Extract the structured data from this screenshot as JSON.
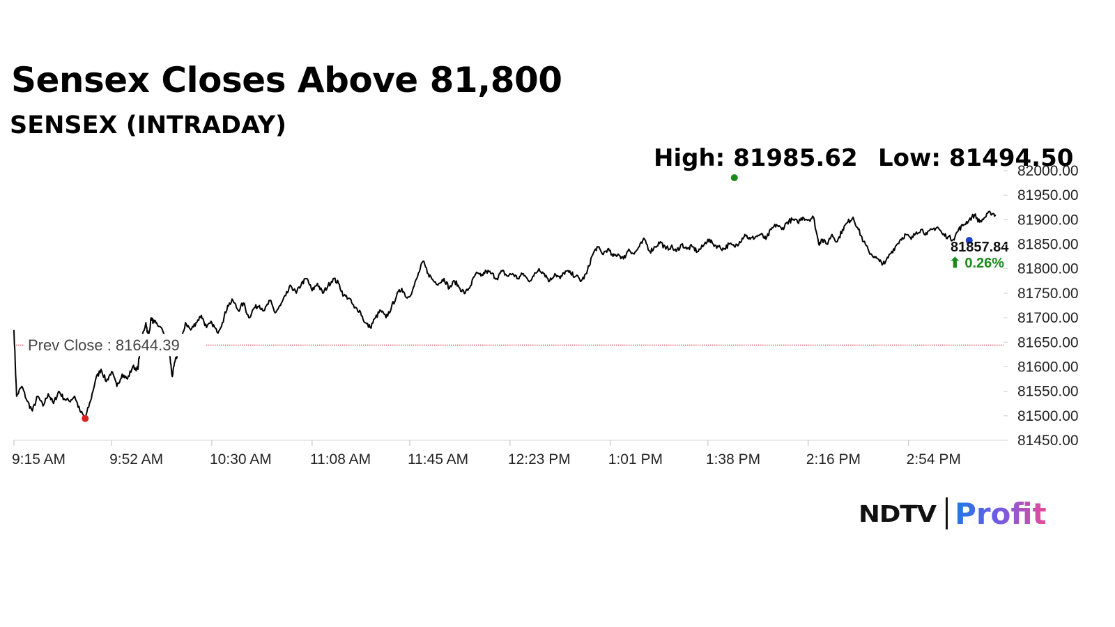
{
  "header": {
    "title": "Sensex Closes Above 81,800",
    "subtitle": "SENSEX (INTRADAY)"
  },
  "logo": {
    "brand": "NDTV",
    "product": "Profit"
  },
  "chart_data": {
    "type": "line",
    "series_color": "#000000",
    "high_label": "High: 81985.62",
    "low_label": "Low: 81494.50",
    "high": {
      "time_min": 273,
      "value": 81985.62,
      "color": "#1a8a1a"
    },
    "low": {
      "time_min": 27,
      "value": 81494.5,
      "color": "#e0201e"
    },
    "last": {
      "time_min": 362,
      "value": 81857.84,
      "label": "81857.84",
      "change": "0.26%",
      "change_color": "#1a8a1a",
      "marker_color": "#1e3ec8"
    },
    "prev_close": {
      "label": "Prev Close : 81644.39",
      "value": 81644.39,
      "color": "#d12020"
    },
    "x_time_labels": [
      {
        "min": 0,
        "label": "9:15 AM"
      },
      {
        "min": 37,
        "label": "9:52 AM"
      },
      {
        "min": 75,
        "label": "10:30 AM"
      },
      {
        "min": 113,
        "label": "11:08 AM"
      },
      {
        "min": 150,
        "label": "11:45 AM"
      },
      {
        "min": 188,
        "label": "12:23 PM"
      },
      {
        "min": 226,
        "label": "1:01 PM"
      },
      {
        "min": 263,
        "label": "1:38 PM"
      },
      {
        "min": 301,
        "label": "2:16 PM"
      },
      {
        "min": 339,
        "label": "2:54 PM"
      }
    ],
    "y_ticks": [
      {
        "value": 81450,
        "label": "81450.00"
      },
      {
        "value": 81500,
        "label": "81500.00"
      },
      {
        "value": 81550,
        "label": "81550.00"
      },
      {
        "value": 81600,
        "label": "81600.00"
      },
      {
        "value": 81650,
        "label": "81650.00"
      },
      {
        "value": 81700,
        "label": "81700.00"
      },
      {
        "value": 81750,
        "label": "81750.00"
      },
      {
        "value": 81800,
        "label": "81800.00"
      },
      {
        "value": 81850,
        "label": "81850.00"
      },
      {
        "value": 81900,
        "label": "81900.00"
      },
      {
        "value": 81950,
        "label": "81950.00"
      },
      {
        "value": 82000,
        "label": "82000.00"
      }
    ],
    "ylim": [
      81450,
      82000
    ],
    "xlim_min": [
      0,
      375
    ],
    "points": [
      [
        0,
        81675
      ],
      [
        1,
        81540
      ],
      [
        3,
        81560
      ],
      [
        5,
        81530
      ],
      [
        7,
        81510
      ],
      [
        9,
        81540
      ],
      [
        11,
        81520
      ],
      [
        13,
        81545
      ],
      [
        15,
        81525
      ],
      [
        17,
        81550
      ],
      [
        19,
        81535
      ],
      [
        21,
        81530
      ],
      [
        23,
        81540
      ],
      [
        25,
        81510
      ],
      [
        27,
        81495
      ],
      [
        29,
        81530
      ],
      [
        31,
        81575
      ],
      [
        33,
        81595
      ],
      [
        35,
        81570
      ],
      [
        37,
        81590
      ],
      [
        39,
        81560
      ],
      [
        41,
        81585
      ],
      [
        43,
        81575
      ],
      [
        45,
        81600
      ],
      [
        47,
        81595
      ],
      [
        48,
        81650
      ],
      [
        50,
        81690
      ],
      [
        51,
        81660
      ],
      [
        52,
        81700
      ],
      [
        53,
        81690
      ],
      [
        54,
        81690
      ],
      [
        58,
        81660
      ],
      [
        59,
        81625
      ],
      [
        60,
        81580
      ],
      [
        61,
        81610
      ],
      [
        63,
        81640
      ],
      [
        65,
        81690
      ],
      [
        67,
        81675
      ],
      [
        69,
        81690
      ],
      [
        71,
        81705
      ],
      [
        73,
        81680
      ],
      [
        75,
        81690
      ],
      [
        77,
        81670
      ],
      [
        79,
        81690
      ],
      [
        81,
        81725
      ],
      [
        83,
        81735
      ],
      [
        85,
        81715
      ],
      [
        87,
        81730
      ],
      [
        89,
        81700
      ],
      [
        91,
        81720
      ],
      [
        93,
        81725
      ],
      [
        95,
        81715
      ],
      [
        97,
        81735
      ],
      [
        99,
        81710
      ],
      [
        101,
        81725
      ],
      [
        103,
        81745
      ],
      [
        105,
        81765
      ],
      [
        107,
        81750
      ],
      [
        109,
        81770
      ],
      [
        111,
        81780
      ],
      [
        113,
        81755
      ],
      [
        115,
        81770
      ],
      [
        117,
        81750
      ],
      [
        119,
        81765
      ],
      [
        121,
        81780
      ],
      [
        123,
        81770
      ],
      [
        125,
        81745
      ],
      [
        127,
        81740
      ],
      [
        129,
        81720
      ],
      [
        131,
        81715
      ],
      [
        133,
        81690
      ],
      [
        135,
        81680
      ],
      [
        137,
        81700
      ],
      [
        139,
        81715
      ],
      [
        141,
        81700
      ],
      [
        143,
        81720
      ],
      [
        145,
        81745
      ],
      [
        147,
        81760
      ],
      [
        149,
        81740
      ],
      [
        151,
        81755
      ],
      [
        153,
        81785
      ],
      [
        155,
        81815
      ],
      [
        157,
        81790
      ],
      [
        159,
        81775
      ],
      [
        161,
        81770
      ],
      [
        163,
        81780
      ],
      [
        165,
        81760
      ],
      [
        167,
        81775
      ],
      [
        169,
        81760
      ],
      [
        171,
        81750
      ],
      [
        173,
        81765
      ],
      [
        175,
        81790
      ],
      [
        177,
        81785
      ],
      [
        179,
        81795
      ],
      [
        181,
        81790
      ],
      [
        183,
        81780
      ],
      [
        185,
        81795
      ],
      [
        187,
        81785
      ],
      [
        189,
        81790
      ],
      [
        191,
        81780
      ],
      [
        193,
        81790
      ],
      [
        195,
        81775
      ],
      [
        197,
        81785
      ],
      [
        199,
        81800
      ],
      [
        201,
        81790
      ],
      [
        203,
        81775
      ],
      [
        205,
        81790
      ],
      [
        207,
        81780
      ],
      [
        209,
        81795
      ],
      [
        211,
        81790
      ],
      [
        213,
        81785
      ],
      [
        215,
        81775
      ],
      [
        217,
        81790
      ],
      [
        219,
        81825
      ],
      [
        221,
        81845
      ],
      [
        223,
        81830
      ],
      [
        225,
        81840
      ],
      [
        227,
        81825
      ],
      [
        229,
        81830
      ],
      [
        231,
        81820
      ],
      [
        233,
        81840
      ],
      [
        235,
        81830
      ],
      [
        237,
        81845
      ],
      [
        239,
        81860
      ],
      [
        241,
        81835
      ],
      [
        243,
        81845
      ],
      [
        245,
        81855
      ],
      [
        247,
        81840
      ],
      [
        249,
        81845
      ],
      [
        251,
        81835
      ],
      [
        253,
        81850
      ],
      [
        255,
        81840
      ],
      [
        257,
        81845
      ],
      [
        259,
        81835
      ],
      [
        261,
        81845
      ],
      [
        263,
        81860
      ],
      [
        265,
        81850
      ],
      [
        267,
        81845
      ],
      [
        269,
        81840
      ],
      [
        271,
        81850
      ],
      [
        273,
        81845
      ],
      [
        275,
        81855
      ],
      [
        277,
        81870
      ],
      [
        279,
        81860
      ],
      [
        281,
        81865
      ],
      [
        283,
        81870
      ],
      [
        285,
        81860
      ],
      [
        287,
        81880
      ],
      [
        289,
        81890
      ],
      [
        291,
        81880
      ],
      [
        293,
        81895
      ],
      [
        295,
        81900
      ],
      [
        297,
        81895
      ],
      [
        299,
        81905
      ],
      [
        301,
        81900
      ],
      [
        303,
        81905
      ],
      [
        305,
        81850
      ],
      [
        306,
        81860
      ],
      [
        308,
        81850
      ],
      [
        310,
        81870
      ],
      [
        312,
        81855
      ],
      [
        314,
        81880
      ],
      [
        316,
        81895
      ],
      [
        318,
        81905
      ],
      [
        320,
        81880
      ],
      [
        322,
        81855
      ],
      [
        324,
        81835
      ],
      [
        326,
        81825
      ],
      [
        328,
        81815
      ],
      [
        330,
        81810
      ],
      [
        332,
        81830
      ],
      [
        334,
        81845
      ],
      [
        336,
        81860
      ],
      [
        338,
        81870
      ],
      [
        340,
        81860
      ],
      [
        342,
        81875
      ],
      [
        344,
        81880
      ],
      [
        346,
        81870
      ],
      [
        348,
        81880
      ],
      [
        350,
        81885
      ],
      [
        352,
        81870
      ],
      [
        354,
        81865
      ],
      [
        356,
        81860
      ],
      [
        358,
        81880
      ],
      [
        360,
        81890
      ],
      [
        362,
        81900
      ],
      [
        364,
        81910
      ],
      [
        366,
        81895
      ],
      [
        368,
        81905
      ],
      [
        370,
        81915
      ],
      [
        372,
        81910
      ]
    ]
  }
}
